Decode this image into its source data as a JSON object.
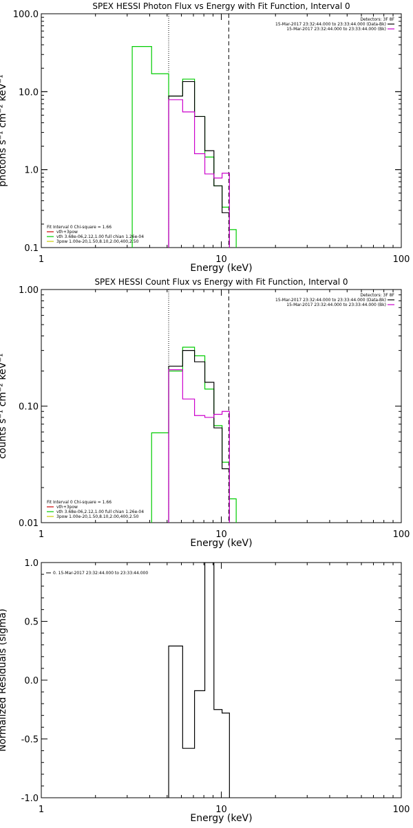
{
  "chart_data": [
    {
      "type": "line",
      "title": "SPEX HESSI Photon Flux vs Energy with Fit Function, Interval 0",
      "xlabel": "Energy (keV)",
      "ylabel": "photons s⁻¹ cm⁻² keV⁻¹",
      "xscale": "log",
      "yscale": "log",
      "xlim": [
        1,
        100
      ],
      "ylim": [
        0.1,
        100
      ],
      "xticks": [
        "1",
        "10",
        "100"
      ],
      "yticks": [
        "0.1",
        "1.0",
        "10.0",
        "100.0"
      ],
      "vlines": [
        {
          "x": 5.1,
          "style": "dotted"
        },
        {
          "x": 11.0,
          "style": "dashed"
        }
      ],
      "legend_top": {
        "header": "Detectors: 3F 8F",
        "entries": [
          {
            "label": "15-Mar-2017 23:32:44.000 to 23:33:44.000 (Data-Bk)",
            "color": "#000000"
          },
          {
            "label": "15-Mar-2017 23:32:44.000 to 23:33:44.000 (Bk)",
            "color": "#cc00cc"
          }
        ]
      },
      "legend_bottom": {
        "header": "Fit Interval 0   Chi-square = 1.66",
        "entries": [
          {
            "label": "vth+3pow",
            "color": "#cc0000"
          },
          {
            "label": "vth 3.68e-06,2.12,1.00   full chian 1.26e-04",
            "color": "#00cc00"
          },
          {
            "label": "3pow 1.00e-20,1.50,8.10,2.00,400,2.50",
            "color": "#cccc00"
          }
        ]
      },
      "series": [
        {
          "color": "#00cc00",
          "edges": [
            3.2,
            4.1,
            5.1,
            6.1,
            7.1,
            8.1,
            9.1,
            10.1,
            11.1,
            12.1
          ],
          "values": [
            38,
            17,
            8.8,
            14.5,
            4.8,
            1.45,
            0.62,
            0.33,
            0.17
          ]
        },
        {
          "color": "#000000",
          "edges": [
            5.1,
            6.1,
            7.1,
            8.1,
            9.1,
            10.1,
            11.1
          ],
          "values": [
            8.8,
            13.5,
            4.8,
            1.75,
            0.62,
            0.28
          ]
        },
        {
          "color": "#cc00cc",
          "edges": [
            5.1,
            6.1,
            7.1,
            8.1,
            9.1,
            10.1,
            11.1
          ],
          "values": [
            7.9,
            5.5,
            1.6,
            0.88,
            0.78,
            0.9
          ]
        }
      ]
    },
    {
      "type": "line",
      "title": "SPEX HESSI Count Flux vs Energy with Fit Function, Interval 0",
      "xlabel": "Energy (keV)",
      "ylabel": "counts s⁻¹ cm⁻² keV⁻¹",
      "xscale": "log",
      "yscale": "log",
      "xlim": [
        1,
        100
      ],
      "ylim": [
        0.01,
        1
      ],
      "xticks": [
        "1",
        "10",
        "100"
      ],
      "yticks": [
        "0.01",
        "0.10",
        "1.00"
      ],
      "vlines": [
        {
          "x": 5.1,
          "style": "dotted"
        },
        {
          "x": 11.0,
          "style": "dashed"
        }
      ],
      "legend_top": {
        "header": "Detectors: 3F 8F",
        "entries": [
          {
            "label": "15-Mar-2017 23:32:44.000 to 23:33:44.000 (Data-Bk)",
            "color": "#000000"
          },
          {
            "label": "15-Mar-2017 23:32:44.000 to 23:33:44.000 (Bk)",
            "color": "#cc00cc"
          }
        ]
      },
      "legend_bottom": {
        "header": "Fit Interval 0   Chi-square = 1.66",
        "entries": [
          {
            "label": "vth+3pow",
            "color": "#cc0000"
          },
          {
            "label": "vth 3.68e-06,2.12,1.00   full chian 1.26e-04",
            "color": "#00cc00"
          },
          {
            "label": "3pow 1.00e-20,1.50,8.10,2.00,400,2.50",
            "color": "#cccc00"
          }
        ]
      },
      "series": [
        {
          "color": "#00cc00",
          "edges": [
            4.1,
            5.1,
            6.1,
            7.1,
            8.1,
            9.1,
            10.1,
            11.1,
            12.1
          ],
          "values": [
            0.059,
            0.2,
            0.32,
            0.27,
            0.14,
            0.068,
            0.033,
            0.016
          ]
        },
        {
          "color": "#000000",
          "edges": [
            5.1,
            6.1,
            7.1,
            8.1,
            9.1,
            10.1,
            11.1
          ],
          "values": [
            0.22,
            0.3,
            0.24,
            0.16,
            0.065,
            0.029
          ]
        },
        {
          "color": "#cc00cc",
          "edges": [
            5.1,
            6.1,
            7.1,
            8.1,
            9.1,
            10.1,
            11.1
          ],
          "values": [
            0.205,
            0.115,
            0.083,
            0.08,
            0.085,
            0.09
          ]
        }
      ]
    },
    {
      "type": "line",
      "title": "",
      "xlabel": "Energy (keV)",
      "ylabel": "Normalized Residuals (sigma)",
      "xscale": "log",
      "yscale": "linear",
      "xlim": [
        1,
        100
      ],
      "ylim": [
        -1,
        1
      ],
      "xticks": [
        "1",
        "10",
        "100"
      ],
      "yticks": [
        "-1.0",
        "-0.5",
        "0.0",
        "0.5",
        "1.0"
      ],
      "legend_top": {
        "header": "",
        "entries": [
          {
            "label": "0. 15-Mar-2017 23:32:44.000 to 23:33:44.000",
            "color": "#000000"
          }
        ]
      },
      "series": [
        {
          "color": "#000000",
          "edges": [
            5.1,
            6.1,
            7.1,
            8.1,
            9.1,
            10.1,
            11.1
          ],
          "values": [
            0.29,
            -0.58,
            -0.09,
            1.0,
            -0.25,
            -0.28
          ]
        }
      ]
    }
  ]
}
